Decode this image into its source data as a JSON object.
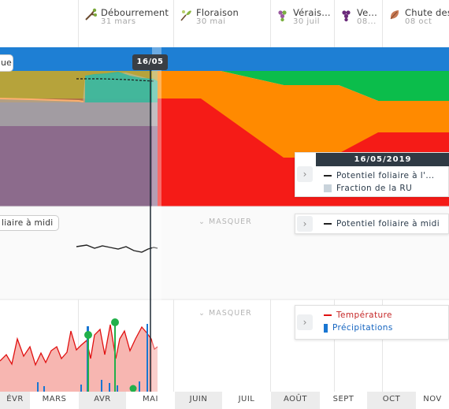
{
  "phenology_stages": [
    {
      "name": "Débourrement",
      "date": "31 mars",
      "color": "#8d4b3a"
    },
    {
      "name": "Floraison",
      "date": "30 mai",
      "color": "#7a9a3a"
    },
    {
      "name": "Vérais...",
      "date": "30 juil",
      "color": "#8a4a8a"
    },
    {
      "name": "Ve...",
      "date": "08...",
      "color": "#6a2a7a"
    },
    {
      "name": "Chute des",
      "date": "08 oct",
      "color": "#b56a4a"
    }
  ],
  "main_chart": {
    "label": "ue",
    "cursor_date": "16/05",
    "zone_colors": {
      "blue": "#1e7fd4",
      "green": "#0bbd4b",
      "orange": "#ff8a00",
      "red": "#f51b17",
      "purple": "#8c6b8c"
    },
    "legend": {
      "date": "16/05/2019",
      "items": [
        {
          "label": "Potentiel foliaire à l'...",
          "kind": "line",
          "color": "#222222"
        },
        {
          "label": "Fraction de la RU",
          "kind": "box",
          "color": "#c9d3db"
        }
      ]
    }
  },
  "leaf_potential_panel": {
    "label": "liaire à midi",
    "hide_label": "MASQUER",
    "legend": [
      {
        "label": "Potentiel foliaire à midi",
        "kind": "line",
        "color": "#222222"
      }
    ]
  },
  "weather_panel": {
    "hide_label": "MASQUER",
    "legend": [
      {
        "label": "Température",
        "kind": "line",
        "color": "#e01010"
      },
      {
        "label": "Précipitations",
        "kind": "bar",
        "color": "#1976d2"
      }
    ]
  },
  "months": [
    "ÉVR",
    "MARS",
    "AVR",
    "MAI",
    "JUIN",
    "JUIL",
    "AOÛT",
    "SEPT",
    "OCT",
    "NOV"
  ],
  "icons": {
    "chevron": "›",
    "hide": "⌄"
  }
}
